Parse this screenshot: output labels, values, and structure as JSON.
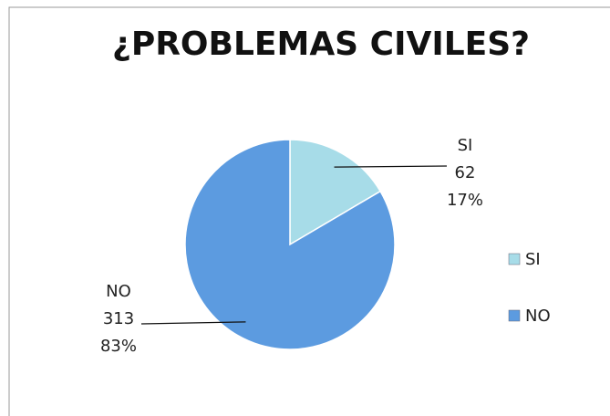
{
  "chart_data": {
    "type": "pie",
    "title": "¿PROBLEMAS CIVILES?",
    "categories": [
      "SI",
      "NO"
    ],
    "values": [
      62,
      313
    ],
    "percent_labels": [
      "17%",
      "83%"
    ],
    "colors": [
      "#a7dce8",
      "#5c9be0"
    ],
    "legend": "right"
  }
}
